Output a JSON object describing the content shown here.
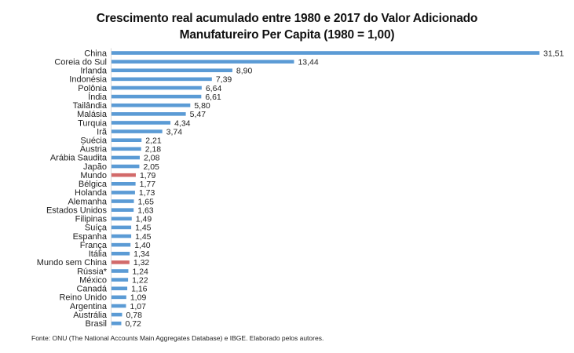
{
  "chart_data": {
    "type": "bar",
    "orientation": "horizontal",
    "title": "Crescimento real acumulado entre 1980 e 2017 do Valor Adicionado",
    "subtitle": "Manufatureiro Per Capita (1980 = 1,00)",
    "xlabel": "",
    "ylabel": "",
    "xlim": [
      0,
      32
    ],
    "grid": false,
    "legend": "none",
    "decimal_separator": ",",
    "colors": {
      "default": "#5b9bd5",
      "highlight": "#d26a6a",
      "axis": "#d9d9d9"
    },
    "categories": [
      "China",
      "Coreia do Sul",
      "Irlanda",
      "Indonésia",
      "Polônia",
      "Índia",
      "Tailândia",
      "Malásia",
      "Turquia",
      "Irã",
      "Suécia",
      "Áustria",
      "Arábia Saudita",
      "Japão",
      "Mundo",
      "Bélgica",
      "Holanda",
      "Alemanha",
      "Estados Unidos",
      "Filipinas",
      "Suíça",
      "Espanha",
      "França",
      "Itália",
      "Mundo sem China",
      "Rússia*",
      "México",
      "Canadá",
      "Reino Unido",
      "Argentina",
      "Austrália",
      "Brasil"
    ],
    "values": [
      31.51,
      13.44,
      8.9,
      7.39,
      6.64,
      6.61,
      5.8,
      5.47,
      4.34,
      3.74,
      2.21,
      2.18,
      2.08,
      2.05,
      1.79,
      1.77,
      1.73,
      1.65,
      1.63,
      1.49,
      1.45,
      1.45,
      1.4,
      1.34,
      1.32,
      1.24,
      1.22,
      1.16,
      1.09,
      1.07,
      0.78,
      0.72
    ],
    "value_labels": [
      "31,51",
      "13,44",
      "8,90",
      "7,39",
      "6,64",
      "6,61",
      "5,80",
      "5,47",
      "4,34",
      "3,74",
      "2,21",
      "2,18",
      "2,08",
      "2,05",
      "1,79",
      "1,77",
      "1,73",
      "1,65",
      "1,63",
      "1,49",
      "1,45",
      "1,45",
      "1,40",
      "1,34",
      "1,32",
      "1,24",
      "1,22",
      "1,16",
      "1,09",
      "1,07",
      "0,78",
      "0,72"
    ],
    "highlighted": [
      "Mundo",
      "Mundo sem China"
    ]
  },
  "source_note": "Fonte: ONU (The National Accounts Main Aggregates Database) e IBGE. Elaborado pelos autores."
}
